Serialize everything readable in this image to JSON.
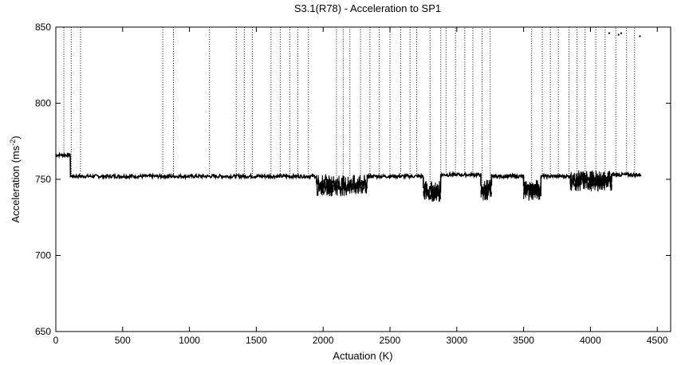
{
  "chart_data": {
    "type": "line",
    "title": "S3.1(R78) - Acceleration to SP1",
    "xlabel": "Actuation (K)",
    "ylabel": "Acceleration (ms",
    "ylabel_sup": "-2",
    "ylabel_close": ")",
    "xlim": [
      0,
      4600
    ],
    "ylim": [
      650,
      850
    ],
    "xticks": [
      "0",
      "500",
      "1000",
      "1500",
      "2000",
      "2500",
      "3000",
      "3500",
      "4000",
      "4500"
    ],
    "yticks": [
      "650",
      "700",
      "750",
      "800",
      "850"
    ],
    "grid": false,
    "legend": "none",
    "series_color": "#000000",
    "baseline": [
      {
        "x": [
          0,
          110
        ],
        "y": 766
      },
      {
        "x": [
          110,
          1950
        ],
        "y": 752
      },
      {
        "x": [
          1950,
          2330
        ],
        "y": 746
      },
      {
        "x": [
          2330,
          2750
        ],
        "y": 752
      },
      {
        "x": [
          2750,
          2880
        ],
        "y": 742
      },
      {
        "x": [
          2880,
          3180
        ],
        "y": 753
      },
      {
        "x": [
          3180,
          3260
        ],
        "y": 743
      },
      {
        "x": [
          3260,
          3500
        ],
        "y": 752
      },
      {
        "x": [
          3500,
          3630
        ],
        "y": 743
      },
      {
        "x": [
          3630,
          3850
        ],
        "y": 752
      },
      {
        "x": [
          3850,
          4160
        ],
        "y": 749
      },
      {
        "x": [
          4160,
          4380
        ],
        "y": 753
      }
    ],
    "spikes_x": [
      60,
      115,
      185,
      800,
      880,
      1150,
      1350,
      1410,
      1470,
      1610,
      1680,
      1750,
      1810,
      1890,
      2100,
      2150,
      2200,
      2280,
      2350,
      2420,
      2500,
      2580,
      2650,
      2700,
      2800,
      2880,
      2920,
      2990,
      3060,
      3120,
      3190,
      3250,
      3560,
      3640,
      3700,
      3760,
      3840,
      3900,
      3960,
      4040,
      4110,
      4190,
      4270,
      4330
    ],
    "scatter_points": [
      {
        "x": 4140,
        "y": 846
      },
      {
        "x": 4210,
        "y": 845
      },
      {
        "x": 4230,
        "y": 846
      },
      {
        "x": 4370,
        "y": 844
      }
    ]
  }
}
